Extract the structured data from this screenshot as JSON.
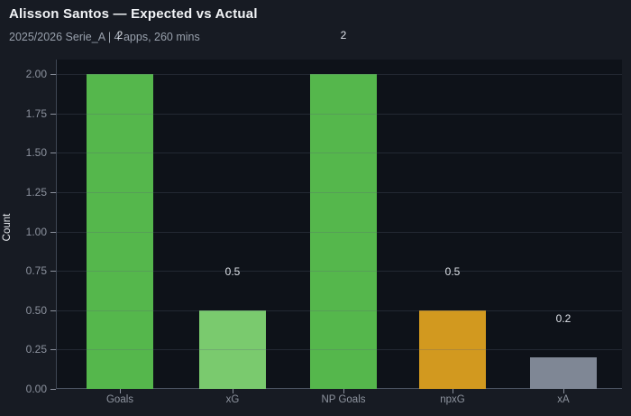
{
  "header": {
    "title": "Alisson Santos — Expected vs Actual",
    "subtitle": "2025/2026 Serie_A | 4 apps, 260 mins"
  },
  "chart_data": {
    "type": "bar",
    "title": "Alisson Santos — Expected vs Actual",
    "subtitle": "2025/2026 Serie_A | 4 apps, 260 mins",
    "categories": [
      "Goals",
      "xG",
      "NP Goals",
      "npxG",
      "xA"
    ],
    "values": [
      2,
      0.5,
      2,
      0.5,
      0.2
    ],
    "value_labels": [
      "2",
      "0.5",
      "2",
      "0.5",
      "0.2"
    ],
    "bar_colors": [
      "#55b74c",
      "#7aca6e",
      "#55b74c",
      "#d2991f",
      "#7f8795"
    ],
    "xlabel": "",
    "ylabel": "Count",
    "ylim": [
      0,
      2.09
    ],
    "yticks": [
      "0.00",
      "0.25",
      "0.50",
      "0.75",
      "1.00",
      "1.25",
      "1.50",
      "1.75",
      "2.00"
    ],
    "grid": true,
    "legend": "none",
    "colors": {
      "page_background": "#171b23",
      "plot_background": "#0e1219",
      "title_text": "#f2f4f7",
      "subtitle_text": "#98a0ac",
      "tick_text": "#8b919d",
      "value_label_text": "#dde1e8",
      "axis_label_text": "#e6e9ed"
    }
  }
}
